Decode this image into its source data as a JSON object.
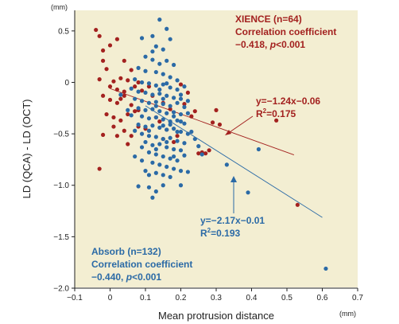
{
  "chart_data": {
    "type": "scatter",
    "xlabel": "Mean protrusion distance",
    "ylabel": "LD (QCA) - LD (OCT)",
    "x_unit": "(mm)",
    "y_unit": "(mm)",
    "xlim": [
      -0.1,
      0.7
    ],
    "ylim": [
      -2.0,
      0.7
    ],
    "x_ticks": [
      -0.1,
      0,
      0.1,
      0.2,
      0.3,
      0.4,
      0.5,
      0.6,
      0.7
    ],
    "x_tick_labels": [
      "−0.1",
      "0",
      "0.1",
      "0.2",
      "0.3",
      "0.4",
      "0.5",
      "0.6",
      "0.7"
    ],
    "y_ticks": [
      -2.0,
      -1.5,
      -1.0,
      -0.5,
      0,
      0.5
    ],
    "y_tick_labels": [
      "−2.0",
      "−1.5",
      "−1.0",
      "−0.5",
      "0",
      "0.5"
    ],
    "grid": false,
    "background": "#f3eed2",
    "series": [
      {
        "name": "XIENCE (n=64)",
        "color": "#a3211f",
        "regression": {
          "slope": -1.24,
          "intercept": -0.06,
          "x_range": [
            0.0,
            0.52
          ]
        },
        "points": [
          [
            -0.04,
            0.51
          ],
          [
            -0.02,
            0.31
          ],
          [
            -0.03,
            0.45
          ],
          [
            0.0,
            0.36
          ],
          [
            0.02,
            0.42
          ],
          [
            0.04,
            0.21
          ],
          [
            -0.02,
            0.21
          ],
          [
            -0.01,
            0.13
          ],
          [
            -0.03,
            0.03
          ],
          [
            0.01,
            0.01
          ],
          [
            0.03,
            0.04
          ],
          [
            0.05,
            0.02
          ],
          [
            0.0,
            -0.04
          ],
          [
            0.02,
            -0.07
          ],
          [
            0.04,
            -0.09
          ],
          [
            0.07,
            -0.04
          ],
          [
            -0.02,
            -0.13
          ],
          [
            0.0,
            -0.17
          ],
          [
            0.02,
            -0.2
          ],
          [
            0.04,
            -0.13
          ],
          [
            0.06,
            -0.22
          ],
          [
            -0.01,
            -0.31
          ],
          [
            0.01,
            -0.34
          ],
          [
            0.03,
            -0.37
          ],
          [
            0.05,
            -0.31
          ],
          [
            0.07,
            -0.28
          ],
          [
            0.01,
            -0.43
          ],
          [
            -0.02,
            -0.51
          ],
          [
            0.02,
            -0.52
          ],
          [
            0.04,
            -0.47
          ],
          [
            0.06,
            -0.52
          ],
          [
            0.08,
            -0.43
          ],
          [
            -0.03,
            -0.84
          ],
          [
            0.08,
            -0.27
          ],
          [
            0.09,
            -0.08
          ],
          [
            0.1,
            -0.45
          ],
          [
            0.12,
            -0.13
          ],
          [
            0.13,
            -0.34
          ],
          [
            0.14,
            -0.38
          ],
          [
            0.15,
            -0.55
          ],
          [
            0.16,
            -0.46
          ],
          [
            0.17,
            -0.26
          ],
          [
            0.18,
            -0.58
          ],
          [
            0.19,
            -0.52
          ],
          [
            0.2,
            -0.02
          ],
          [
            0.21,
            -0.21
          ],
          [
            0.22,
            -0.1
          ],
          [
            0.23,
            -0.33
          ],
          [
            0.24,
            -0.28
          ],
          [
            0.25,
            -0.69
          ],
          [
            0.26,
            -0.68
          ],
          [
            0.27,
            -0.69
          ],
          [
            0.28,
            -0.66
          ],
          [
            0.29,
            -0.39
          ],
          [
            0.3,
            -0.27
          ],
          [
            0.31,
            -0.41
          ],
          [
            0.47,
            -0.37
          ],
          [
            0.53,
            -1.19
          ],
          [
            0.11,
            -0.04
          ],
          [
            0.06,
            0.12
          ],
          [
            0.08,
            0.0
          ],
          [
            0.05,
            -0.6
          ],
          [
            0.15,
            -0.2
          ],
          [
            0.03,
            -0.16
          ]
        ]
      },
      {
        "name": "Absorb (n=132)",
        "color": "#2b6aa6",
        "regression": {
          "slope": -2.17,
          "intercept": -0.01,
          "x_range": [
            0.1,
            0.6
          ]
        },
        "points": [
          [
            0.14,
            0.61
          ],
          [
            0.16,
            0.52
          ],
          [
            0.12,
            0.45
          ],
          [
            0.17,
            0.42
          ],
          [
            0.09,
            0.43
          ],
          [
            0.13,
            0.35
          ],
          [
            0.15,
            0.32
          ],
          [
            0.1,
            0.25
          ],
          [
            0.12,
            0.22
          ],
          [
            0.16,
            0.21
          ],
          [
            0.18,
            0.17
          ],
          [
            0.08,
            0.14
          ],
          [
            0.1,
            0.11
          ],
          [
            0.13,
            0.1
          ],
          [
            0.15,
            0.08
          ],
          [
            0.17,
            0.05
          ],
          [
            0.19,
            0.02
          ],
          [
            0.07,
            0.03
          ],
          [
            0.09,
            0.0
          ],
          [
            0.11,
            -0.01
          ],
          [
            0.13,
            -0.03
          ],
          [
            0.15,
            -0.02
          ],
          [
            0.17,
            -0.05
          ],
          [
            0.19,
            -0.07
          ],
          [
            0.21,
            -0.04
          ],
          [
            0.06,
            -0.06
          ],
          [
            0.08,
            -0.09
          ],
          [
            0.1,
            -0.1
          ],
          [
            0.12,
            -0.12
          ],
          [
            0.14,
            -0.11
          ],
          [
            0.16,
            -0.13
          ],
          [
            0.18,
            -0.15
          ],
          [
            0.2,
            -0.12
          ],
          [
            0.22,
            -0.18
          ],
          [
            0.07,
            -0.16
          ],
          [
            0.09,
            -0.18
          ],
          [
            0.11,
            -0.2
          ],
          [
            0.13,
            -0.19
          ],
          [
            0.15,
            -0.21
          ],
          [
            0.17,
            -0.23
          ],
          [
            0.19,
            -0.2
          ],
          [
            0.21,
            -0.24
          ],
          [
            0.08,
            -0.25
          ],
          [
            0.1,
            -0.27
          ],
          [
            0.12,
            -0.26
          ],
          [
            0.14,
            -0.28
          ],
          [
            0.16,
            -0.3
          ],
          [
            0.18,
            -0.29
          ],
          [
            0.2,
            -0.31
          ],
          [
            0.06,
            -0.32
          ],
          [
            0.09,
            -0.33
          ],
          [
            0.11,
            -0.35
          ],
          [
            0.13,
            -0.34
          ],
          [
            0.15,
            -0.36
          ],
          [
            0.17,
            -0.38
          ],
          [
            0.19,
            -0.37
          ],
          [
            0.21,
            -0.4
          ],
          [
            0.08,
            -0.41
          ],
          [
            0.1,
            -0.43
          ],
          [
            0.12,
            -0.42
          ],
          [
            0.14,
            -0.44
          ],
          [
            0.16,
            -0.46
          ],
          [
            0.18,
            -0.45
          ],
          [
            0.2,
            -0.48
          ],
          [
            0.22,
            -0.5
          ],
          [
            0.09,
            -0.5
          ],
          [
            0.11,
            -0.52
          ],
          [
            0.13,
            -0.53
          ],
          [
            0.15,
            -0.55
          ],
          [
            0.17,
            -0.54
          ],
          [
            0.19,
            -0.57
          ],
          [
            0.21,
            -0.59
          ],
          [
            0.1,
            -0.58
          ],
          [
            0.12,
            -0.61
          ],
          [
            0.14,
            -0.6
          ],
          [
            0.16,
            -0.63
          ],
          [
            0.18,
            -0.65
          ],
          [
            0.2,
            -0.66
          ],
          [
            0.11,
            -0.68
          ],
          [
            0.13,
            -0.7
          ],
          [
            0.15,
            -0.72
          ],
          [
            0.17,
            -0.74
          ],
          [
            0.19,
            -0.76
          ],
          [
            0.09,
            -0.76
          ],
          [
            0.12,
            -0.78
          ],
          [
            0.14,
            -0.8
          ],
          [
            0.16,
            -0.82
          ],
          [
            0.18,
            -0.84
          ],
          [
            0.2,
            -0.86
          ],
          [
            0.13,
            -0.88
          ],
          [
            0.15,
            -0.9
          ],
          [
            0.17,
            -0.92
          ],
          [
            0.08,
            -1.01
          ],
          [
            0.11,
            -1.02
          ],
          [
            0.13,
            -1.06
          ],
          [
            0.12,
            -1.12
          ],
          [
            0.15,
            -1.0
          ],
          [
            0.2,
            -1.0
          ],
          [
            0.22,
            -0.87
          ],
          [
            0.24,
            -0.55
          ],
          [
            0.26,
            -0.7
          ],
          [
            0.25,
            -0.62
          ],
          [
            0.23,
            -0.48
          ],
          [
            0.21,
            -0.71
          ],
          [
            0.33,
            -0.8
          ],
          [
            0.39,
            -1.07
          ],
          [
            0.42,
            -0.65
          ],
          [
            0.61,
            -1.81
          ],
          [
            0.07,
            -0.47
          ],
          [
            0.05,
            -0.27
          ],
          [
            0.03,
            -0.12
          ],
          [
            0.07,
            -0.72
          ],
          [
            0.1,
            -0.86
          ],
          [
            0.12,
            0.3
          ],
          [
            0.14,
            0.18
          ],
          [
            0.16,
            -0.01
          ],
          [
            0.18,
            -0.33
          ],
          [
            0.2,
            -0.16
          ],
          [
            0.22,
            -0.3
          ],
          [
            0.11,
            -0.47
          ],
          [
            0.13,
            -0.65
          ],
          [
            0.15,
            -0.16
          ],
          [
            0.17,
            -0.41
          ],
          [
            0.19,
            -0.48
          ],
          [
            0.14,
            -0.07
          ],
          [
            0.16,
            -0.58
          ],
          [
            0.18,
            -0.72
          ],
          [
            0.11,
            -0.9
          ],
          [
            0.09,
            -0.63
          ],
          [
            0.2,
            -0.38
          ],
          [
            0.15,
            -0.42
          ],
          [
            0.13,
            -0.23
          ]
        ]
      }
    ],
    "annotations": {
      "xience": {
        "title": "XIENCE (n=64)",
        "line2": "Correlation coefficient",
        "line3_prefix": "−0.418, ",
        "line3_p": "p",
        "line3_suffix": "<0.001",
        "equation": "y=−1.24x−0.06",
        "r2_prefix": "R",
        "r2_sup": "2",
        "r2_suffix": "=0.175"
      },
      "absorb": {
        "title": "Absorb (n=132)",
        "line2": "Correlation coefficient",
        "line3_prefix": "−0.440, ",
        "line3_p": "p",
        "line3_suffix": "<0.001",
        "equation": "y=−2.17x−0.01",
        "r2_prefix": "R",
        "r2_sup": "2",
        "r2_suffix": "=0.193"
      }
    }
  }
}
